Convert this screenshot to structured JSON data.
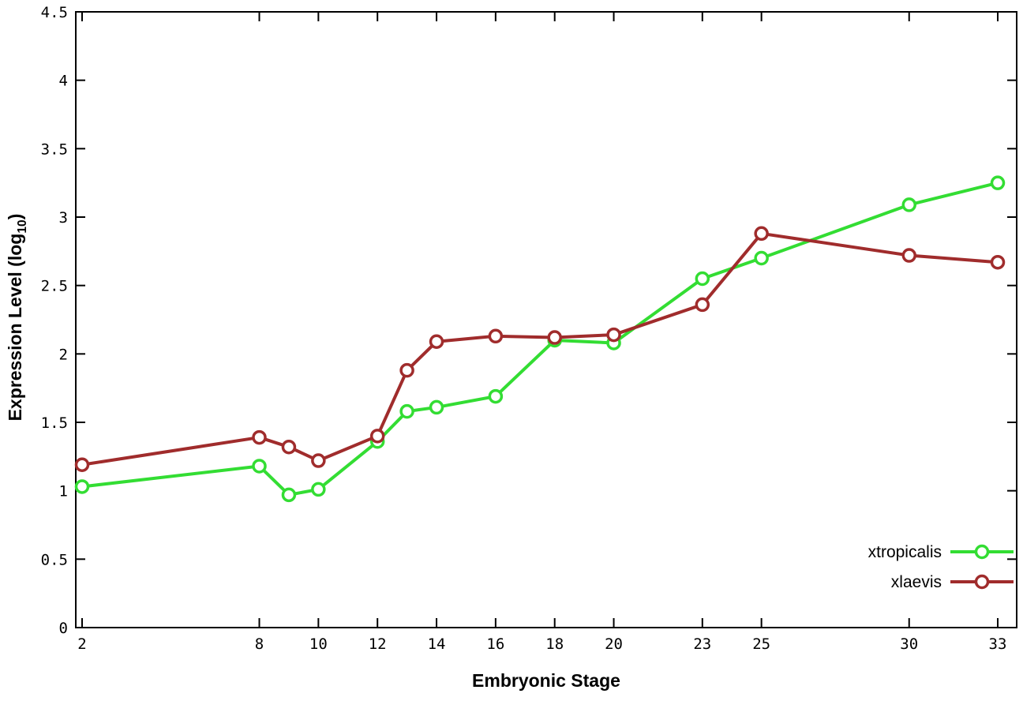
{
  "chart_data": {
    "type": "line",
    "title": "",
    "xlabel": "Embryonic Stage",
    "ylabel": "Expression Level (log10)",
    "ylabel_parts": {
      "pre": "Expression Level (log",
      "sub": "10",
      "post": ")"
    },
    "xlim": [
      2,
      33
    ],
    "ylim": [
      0,
      4.5
    ],
    "grid": false,
    "legend_position": "bottom-right",
    "x_ticks": [
      2,
      8,
      10,
      12,
      14,
      16,
      18,
      20,
      23,
      25,
      30,
      33
    ],
    "y_ticks": [
      0,
      0.5,
      1,
      1.5,
      2,
      2.5,
      3,
      3.5,
      4,
      4.5
    ],
    "x": [
      2,
      8,
      9,
      10,
      12,
      13,
      14,
      16,
      18,
      20,
      23,
      25,
      30,
      33
    ],
    "series": [
      {
        "name": "xtropicalis",
        "color": "#33dd33",
        "values": [
          1.03,
          1.18,
          0.97,
          1.01,
          1.36,
          1.58,
          1.61,
          1.69,
          2.1,
          2.08,
          2.55,
          2.7,
          3.09,
          3.25
        ]
      },
      {
        "name": "xlaevis",
        "color": "#a02c2c",
        "values": [
          1.19,
          1.39,
          1.32,
          1.22,
          1.4,
          1.88,
          2.09,
          2.13,
          2.12,
          2.14,
          2.36,
          2.88,
          2.72,
          2.67
        ]
      }
    ],
    "axis_color": "#000000",
    "background_color": "#ffffff"
  }
}
